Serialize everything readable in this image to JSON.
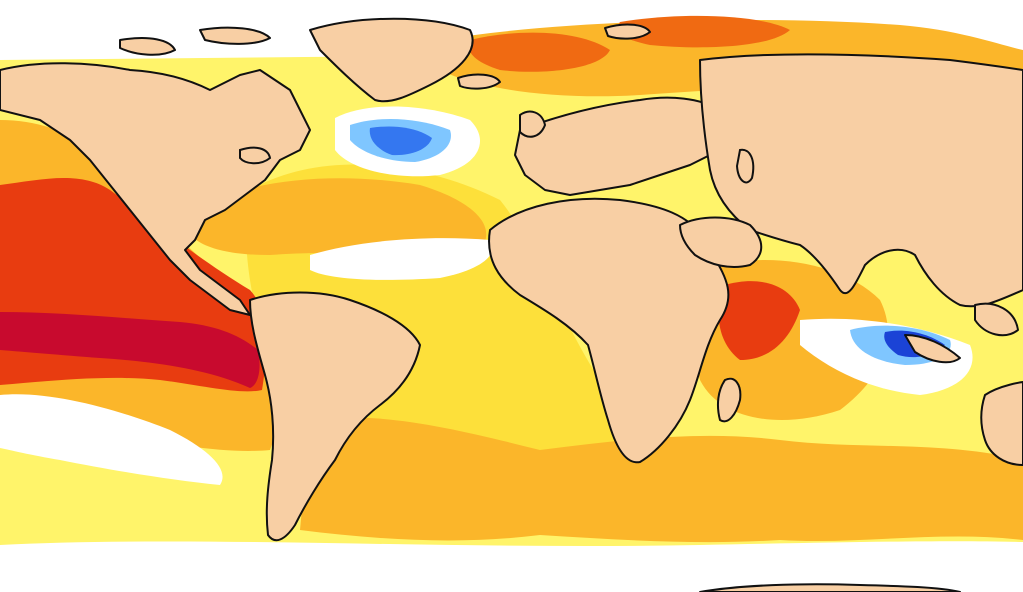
{
  "map": {
    "colors": {
      "land": "#f8cfa4",
      "coast": "#111111",
      "neutral": "#ffffff",
      "anomaly_warm_1": "#fff46a",
      "anomaly_warm_2": "#fde03a",
      "anomaly_warm_3": "#fbb62a",
      "anomaly_warm_4": "#f6a320",
      "anomaly_warm_5": "#f06a12",
      "anomaly_warm_6": "#e83c10",
      "anomaly_warm_7": "#c80a2e",
      "anomaly_cool_1": "#bff0ff",
      "anomaly_cool_2": "#7fc6ff",
      "anomaly_cool_3": "#3477f0",
      "anomaly_cool_4": "#1b43d6"
    }
  }
}
